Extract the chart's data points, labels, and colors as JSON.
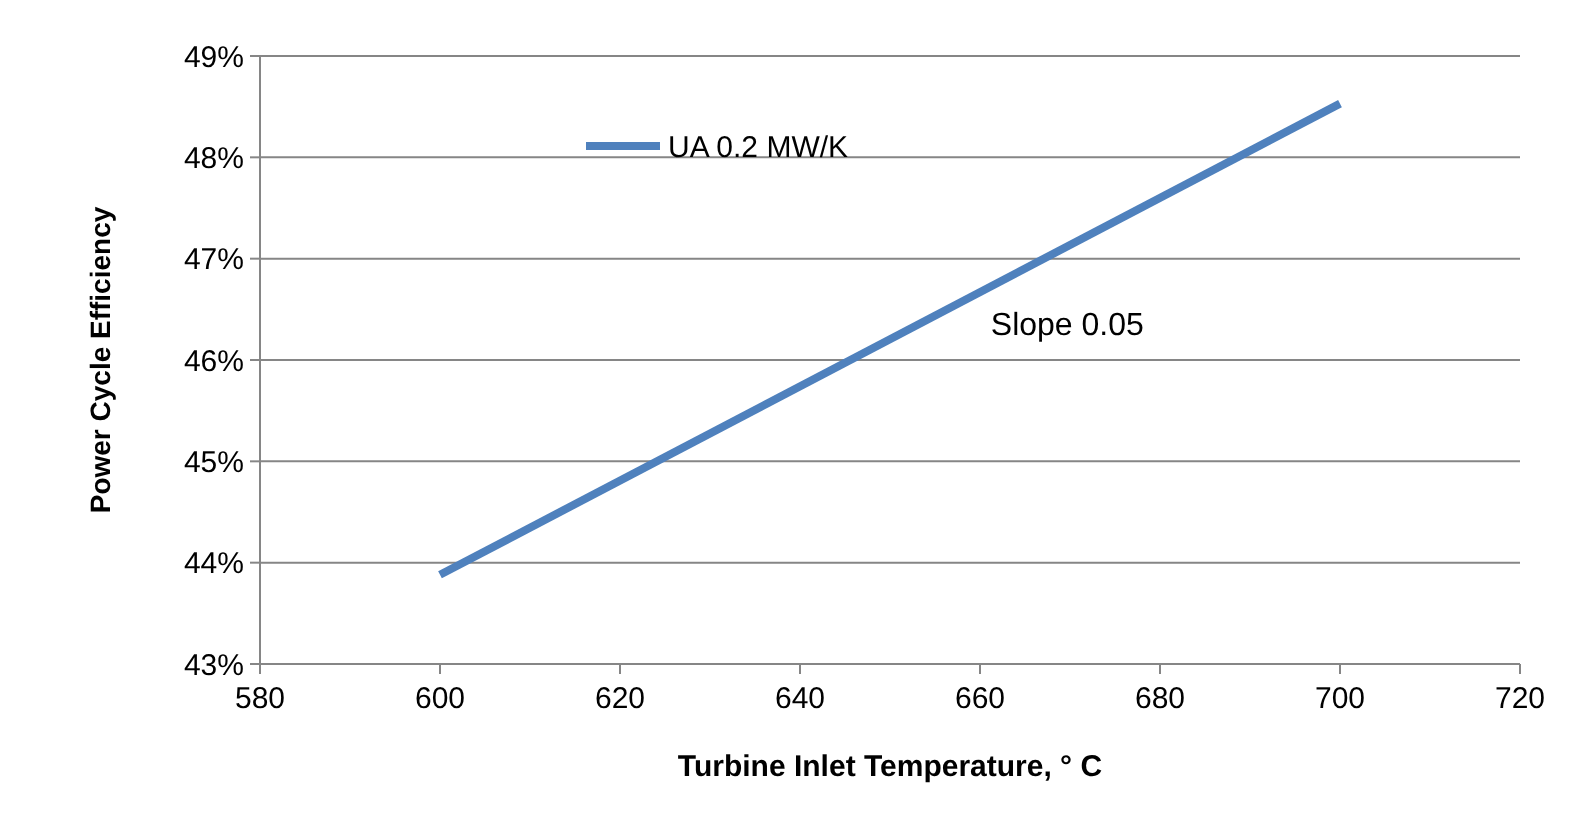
{
  "chart_data": {
    "type": "line",
    "xlabel": "Turbine Inlet Temperature, ° C",
    "ylabel": "Power Cycle Efficiency",
    "x": [
      600,
      700
    ],
    "series": [
      {
        "name": "UA 0.2 MW/K",
        "color": "#4f81bd",
        "values": [
          43.88,
          48.53
        ]
      }
    ],
    "xlim": [
      580,
      720
    ],
    "xticks": [
      580,
      600,
      620,
      640,
      660,
      680,
      700,
      720
    ],
    "ylim": [
      43,
      49
    ],
    "yticks": [
      {
        "value": 43,
        "label": "43%"
      },
      {
        "value": 44,
        "label": "44%"
      },
      {
        "value": 45,
        "label": "45%"
      },
      {
        "value": 46,
        "label": "46%"
      },
      {
        "value": 47,
        "label": "47%"
      },
      {
        "value": 48,
        "label": "48%"
      },
      {
        "value": 49,
        "label": "49%"
      }
    ],
    "grid": "y",
    "legend": "top",
    "marker": "none",
    "line_style": "solid",
    "annotations": [
      "Slope 0.05"
    ]
  }
}
